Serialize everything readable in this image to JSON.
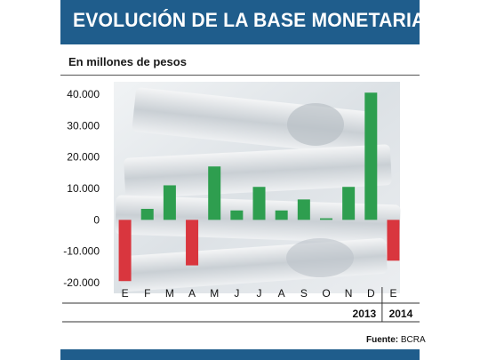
{
  "header": {
    "title": "EVOLUCIÓN DE LA BASE MONETARIA"
  },
  "subtitle": "En millones de pesos",
  "source": {
    "label": "Fuente:",
    "value": "BCRA"
  },
  "colors": {
    "positive": "#2e9e4f",
    "negative": "#d9363e",
    "header": "#1f5d8c"
  },
  "chart_data": {
    "type": "bar",
    "title": "EVOLUCIÓN DE LA BASE MONETARIA",
    "ylabel": "En millones de pesos",
    "categories": [
      "E",
      "F",
      "M",
      "A",
      "M",
      "J",
      "J",
      "A",
      "S",
      "O",
      "N",
      "D",
      "E"
    ],
    "years": [
      {
        "label": "2013",
        "start": 0,
        "end": 11
      },
      {
        "label": "2014",
        "start": 12,
        "end": 12
      }
    ],
    "values": [
      -19500,
      3500,
      11000,
      -14500,
      17000,
      3000,
      10500,
      3000,
      6500,
      500,
      10500,
      40500,
      -13000
    ],
    "ylim": [
      -20000,
      40000
    ],
    "yticks": [
      -20000,
      -10000,
      0,
      10000,
      20000,
      30000,
      40000
    ],
    "ytick_labels": [
      "-20.000",
      "-10.000",
      "0",
      "10.000",
      "20.000",
      "30.000",
      "40.000"
    ],
    "grid": false,
    "background_image": "stacks of peso banknotes"
  }
}
